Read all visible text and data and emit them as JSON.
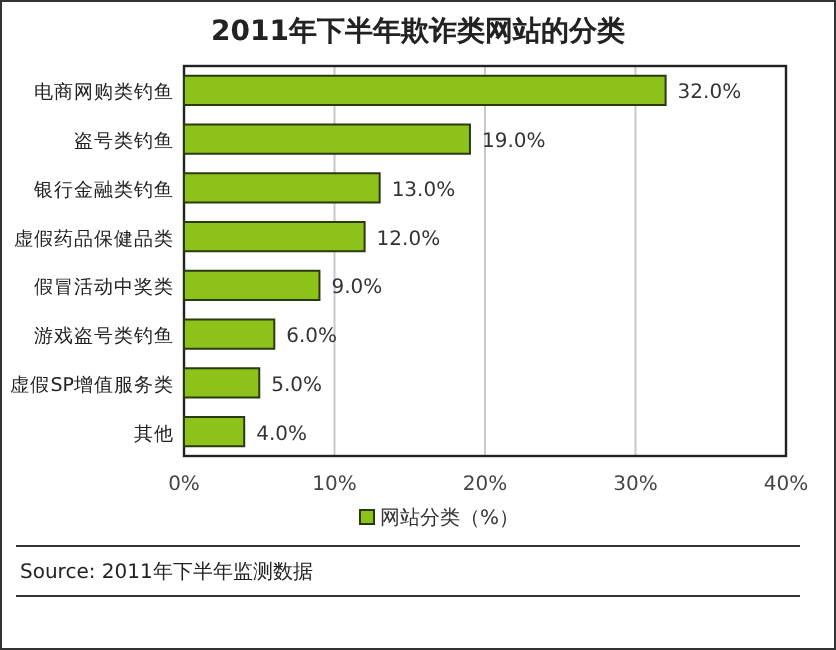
{
  "chart_data": {
    "type": "bar",
    "orientation": "horizontal",
    "title": "2011年下半年欺诈类网站的分类",
    "categories": [
      "电商网购类钓鱼",
      "盗号类钓鱼",
      "银行金融类钓鱼",
      "虚假药品保健品类",
      "假冒活动中奖类",
      "游戏盗号类钓鱼",
      "虚假SP增值服务类",
      "其他"
    ],
    "series": [
      {
        "name": "网站分类（%）",
        "color": "#8cc21a",
        "values": [
          32.0,
          19.0,
          13.0,
          12.0,
          9.0,
          6.0,
          5.0,
          4.0
        ],
        "value_labels": [
          "32.0%",
          "19.0%",
          "13.0%",
          "12.0%",
          "9.0%",
          "6.0%",
          "5.0%",
          "4.0%"
        ]
      }
    ],
    "xlim": [
      0,
      40
    ],
    "xticks": [
      {
        "value": 0,
        "label": "0%"
      },
      {
        "value": 10,
        "label": "10%"
      },
      {
        "value": 20,
        "label": "20%"
      },
      {
        "value": 30,
        "label": "30%"
      },
      {
        "value": 40,
        "label": "40%"
      }
    ],
    "grid": "x",
    "legend": "bottom",
    "annotations": [
      "Source: 2011年下半年监测数据"
    ]
  }
}
